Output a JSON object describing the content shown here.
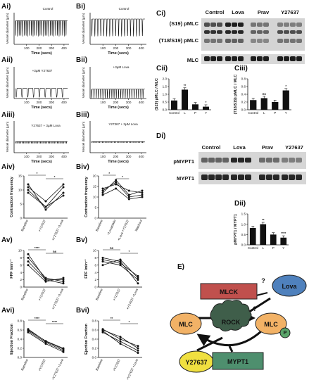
{
  "labels": {
    "Ai": "Ai)",
    "Bi": "Bi)",
    "Aii": "Aii)",
    "Bii": "Bii)",
    "Aiii": "Aiii)",
    "Biii": "Biii)",
    "Aiv": "Aiv)",
    "Biv": "Biv)",
    "Av": "Av)",
    "Bv": "Bv)",
    "Avi": "Avi)",
    "Bvi": "Bvi)",
    "Ci": "Ci)",
    "Cii": "Cii)",
    "Ciii": "Ciii)",
    "Di": "Di)",
    "Dii": "Dii)",
    "E": "E)"
  },
  "traces": {
    "ylabel": "Vessel diameter (µm)",
    "xlabel": "Time (secs)",
    "xticks": [
      "100",
      "200",
      "300",
      "400"
    ],
    "Ai": {
      "title": "Control"
    },
    "Bi": {
      "title": "Control"
    },
    "Aii": {
      "title": "+3µM Y27637"
    },
    "Bii": {
      "title": "+3µM Lova"
    },
    "Aiii": {
      "title": "Y27637 + 3µM Lova"
    },
    "Biii": {
      "title": "Y27367 + 3µM Lova"
    }
  },
  "chart_data": [
    {
      "id": "Aiv",
      "type": "line",
      "ylabel": "Contraction frequency",
      "categories": [
        "Baseline",
        "+Y27637",
        "+Y27637 +Lova"
      ],
      "ylim": [
        0,
        15
      ],
      "yticks": [
        "0",
        "5",
        "10",
        "15"
      ],
      "series": [
        {
          "values": [
            12,
            3,
            9
          ]
        },
        {
          "values": [
            10,
            4,
            11
          ]
        },
        {
          "values": [
            11,
            6,
            12
          ]
        },
        {
          "values": [
            9,
            4,
            8
          ]
        }
      ],
      "sig": [
        {
          "from": 0,
          "to": 1,
          "label": "*"
        },
        {
          "from": 1,
          "to": 2,
          "label": "*"
        }
      ]
    },
    {
      "id": "Biv",
      "type": "line",
      "ylabel": "Contraction frequency",
      "categories": [
        "Baseline",
        "+Lovastatin",
        "+Lova +Y27637",
        "Washout"
      ],
      "ylim": [
        0,
        20
      ],
      "yticks": [
        "0",
        "5",
        "10",
        "15",
        "20"
      ],
      "series": [
        {
          "values": [
            12,
            18,
            11,
            13
          ]
        },
        {
          "values": [
            14,
            16,
            13,
            12
          ]
        },
        {
          "values": [
            11,
            14,
            9,
            10
          ]
        },
        {
          "values": [
            13,
            17,
            10,
            11
          ]
        }
      ],
      "sig": [
        {
          "from": 0,
          "to": 1,
          "label": "*"
        },
        {
          "from": 1,
          "to": 2,
          "label": "*"
        }
      ]
    },
    {
      "id": "Av",
      "type": "line",
      "ylabel": "FPF /min⁻¹",
      "categories": [
        "Baseline",
        "+Y27637",
        "+Y27637 +Lova"
      ],
      "ylim": [
        0,
        10
      ],
      "yticks": [
        "0",
        "2",
        "4",
        "6",
        "8",
        "10"
      ],
      "series": [
        {
          "values": [
            9,
            2,
            2
          ]
        },
        {
          "values": [
            7,
            2,
            1
          ]
        },
        {
          "values": [
            6,
            1.5,
            2.5
          ]
        },
        {
          "values": [
            8,
            2.5,
            1.5
          ]
        }
      ],
      "sig": [
        {
          "from": 0,
          "to": 1,
          "label": "****"
        },
        {
          "from": 1,
          "to": 2,
          "label": "ns"
        }
      ]
    },
    {
      "id": "Bv",
      "type": "line",
      "ylabel": "FPF /min⁻¹",
      "categories": [
        "Baseline",
        "+Y27637",
        "+Y27637 +Lova"
      ],
      "ylim": [
        0,
        10
      ],
      "yticks": [
        "0",
        "2",
        "4",
        "6",
        "8",
        "10"
      ],
      "series": [
        {
          "values": [
            7,
            6,
            2
          ]
        },
        {
          "values": [
            8,
            7,
            1
          ]
        },
        {
          "values": [
            6,
            7.5,
            2.5
          ]
        },
        {
          "values": [
            7.5,
            6.5,
            3
          ]
        }
      ],
      "sig": [
        {
          "from": 0,
          "to": 1,
          "label": "ns"
        },
        {
          "from": 1,
          "to": 2,
          "label": "*"
        }
      ]
    },
    {
      "id": "Avi",
      "type": "line",
      "ylabel": "Ejection Fraction",
      "categories": [
        "Baseline",
        "+Y27637",
        "+Y27637 +Lova"
      ],
      "ylim": [
        0,
        0.8
      ],
      "yticks": [
        "0.0",
        "0.2",
        "0.4",
        "0.6",
        "0.8"
      ],
      "series": [
        {
          "values": [
            0.62,
            0.35,
            0.18
          ]
        },
        {
          "values": [
            0.58,
            0.33,
            0.15
          ]
        },
        {
          "values": [
            0.55,
            0.3,
            0.12
          ]
        },
        {
          "values": [
            0.6,
            0.36,
            0.2
          ]
        }
      ],
      "sig": [
        {
          "from": 0,
          "to": 1,
          "label": "****"
        },
        {
          "from": 1,
          "to": 2,
          "label": "****"
        }
      ]
    },
    {
      "id": "Bvi",
      "type": "line",
      "ylabel": "Ejection Fraction",
      "categories": [
        "Baseline",
        "+Y27637",
        "+Y27637 +Lova"
      ],
      "ylim": [
        0,
        0.8
      ],
      "yticks": [
        "0.0",
        "0.2",
        "0.4",
        "0.6",
        "0.8"
      ],
      "series": [
        {
          "values": [
            0.6,
            0.45,
            0.2
          ]
        },
        {
          "values": [
            0.55,
            0.35,
            0.15
          ]
        },
        {
          "values": [
            0.62,
            0.4,
            0.25
          ]
        },
        {
          "values": [
            0.58,
            0.3,
            0.1
          ]
        }
      ],
      "sig": [
        {
          "from": 0,
          "to": 1,
          "label": "**"
        },
        {
          "from": 1,
          "to": 2,
          "label": "*"
        }
      ]
    },
    {
      "id": "Cii",
      "type": "bar",
      "ylabel": "(S19) pMLC / MLC",
      "categories": [
        "Control",
        "L",
        "P",
        "Y"
      ],
      "values": [
        0.6,
        1.3,
        0.35,
        0.2
      ],
      "ylim": [
        0,
        2
      ],
      "yticks": [
        "0.0",
        "0.5",
        "1.0",
        "1.5",
        "2.0"
      ],
      "stars": [
        "",
        "**",
        "",
        "*"
      ]
    },
    {
      "id": "Ciii",
      "type": "bar",
      "ylabel": "(T18/S19) pMLC / MLC",
      "categories": [
        "Control",
        "L",
        "P",
        "Y"
      ],
      "values": [
        0.25,
        0.3,
        0.2,
        0.5
      ],
      "ylim": [
        0,
        0.8
      ],
      "yticks": [
        "0.0",
        "0.2",
        "0.4",
        "0.6",
        "0.8"
      ],
      "stars": [
        "",
        "ns",
        "",
        "*"
      ]
    },
    {
      "id": "Dii",
      "type": "bar",
      "ylabel": "pMYPT1 / MYPT1",
      "categories": [
        "Control",
        "L",
        "P",
        "Y"
      ],
      "values": [
        0.82,
        1.0,
        0.5,
        0.35
      ],
      "ylim": [
        0,
        1.5
      ],
      "yticks": [
        "0.0",
        "0.5",
        "1.0",
        "1.5"
      ],
      "stars": [
        "",
        "**",
        "",
        "****"
      ]
    }
  ],
  "blotC": {
    "columns": [
      "Control",
      "Lova",
      "Prav",
      "Y27637"
    ],
    "rows": [
      "(S19) pMLC",
      "(T18/S19) pMLC",
      "MLC"
    ]
  },
  "blotD": {
    "columns": [
      "Control",
      "Lova",
      "Prav",
      "Y27637"
    ],
    "rows": [
      "pMYPT1",
      "MYPT1"
    ]
  },
  "diagram": {
    "mlck": "MLCK",
    "lova": "Lova",
    "rock": "ROCK",
    "mlc_left": "MLC",
    "mlc_right": "MLC",
    "p": "P",
    "y27637": "Y27637",
    "mypt1": "MYPT1",
    "q1": "?",
    "q2": "?",
    "colors": {
      "mlck": "#c0504d",
      "lova": "#4f81bd",
      "mlc": "#f2b266",
      "rock": "#3f5e4a",
      "y27637": "#f0e040",
      "mypt1": "#4e8f6e",
      "p": "#5aa56a"
    }
  }
}
